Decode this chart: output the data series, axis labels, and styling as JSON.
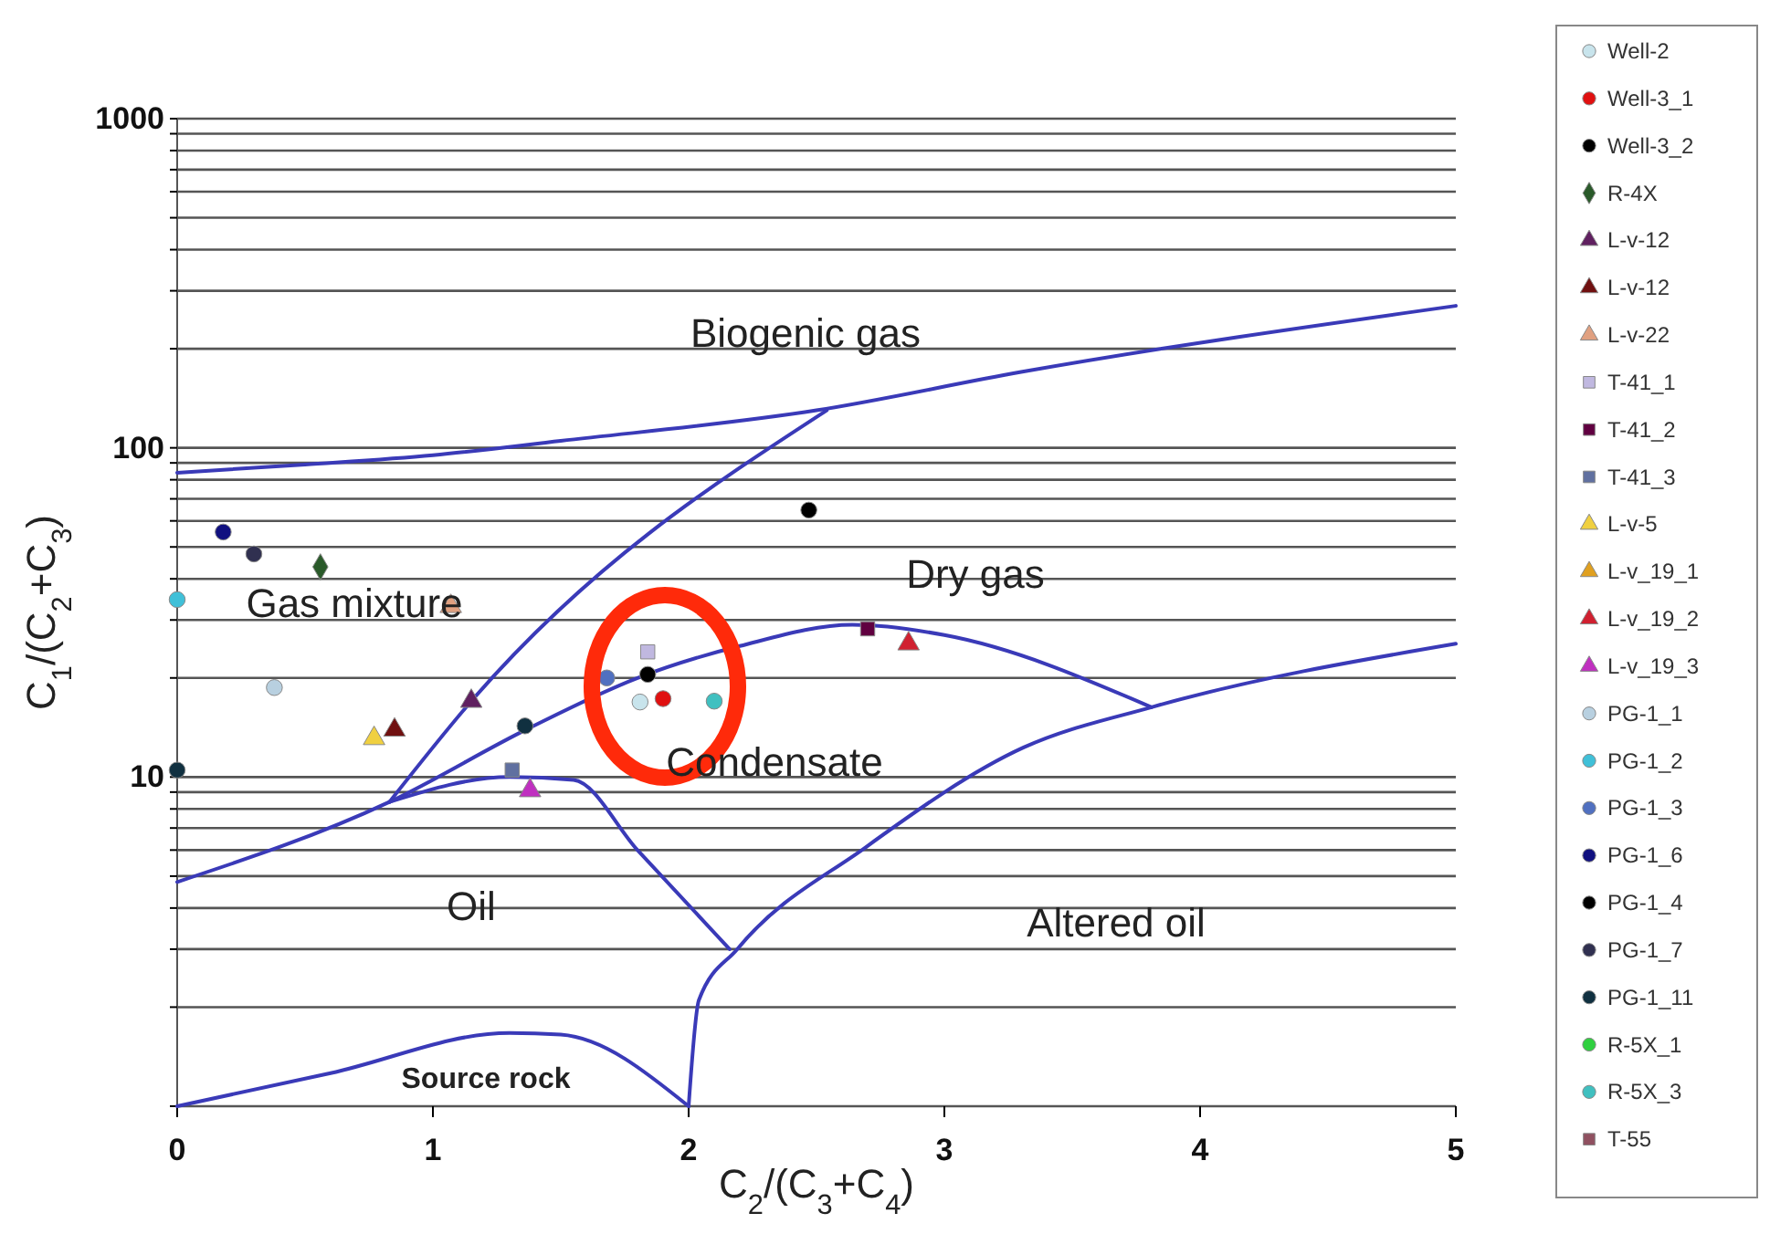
{
  "chart_data": {
    "type": "scatter",
    "xlabel": "C$_{2}$/(C$_{3}$+C$_{4}$)",
    "ylabel": "C$_{1}$/(C$_{2}$+C$_{3}$)",
    "log": "y",
    "grid": "y",
    "legend": "right",
    "xlim": [
      0,
      5
    ],
    "xticks": [
      0,
      1,
      2,
      3,
      4,
      5
    ],
    "ylim": [
      1,
      1000
    ],
    "yticks": [
      {
        "value": 1,
        "label": null
      },
      {
        "value": 2,
        "label": null
      },
      {
        "value": 3,
        "label": null
      },
      {
        "value": 4,
        "label": null
      },
      {
        "value": 5,
        "label": null
      },
      {
        "value": 6,
        "label": null
      },
      {
        "value": 7,
        "label": null
      },
      {
        "value": 8,
        "label": null
      },
      {
        "value": 9,
        "label": null
      },
      10,
      {
        "value": 20,
        "label": null
      },
      {
        "value": 30,
        "label": null
      },
      {
        "value": 40,
        "label": null
      },
      {
        "value": 50,
        "label": null
      },
      {
        "value": 60,
        "label": null
      },
      {
        "value": 70,
        "label": null
      },
      {
        "value": 80,
        "label": null
      },
      {
        "value": 90,
        "label": null
      },
      100,
      {
        "value": 200,
        "label": null
      },
      {
        "value": 300,
        "label": null
      },
      {
        "value": 400,
        "label": null
      },
      {
        "value": 500,
        "label": null
      },
      {
        "value": 600,
        "label": null
      },
      {
        "value": 700,
        "label": null
      },
      {
        "value": 800,
        "label": null
      },
      {
        "value": 900,
        "label": null
      },
      1000
    ],
    "series": [
      {
        "type": "line",
        "color": "#3a3ab8",
        "x": [
          0,
          0.5,
          1,
          1.5,
          2.5,
          3.3,
          5
        ],
        "values": [
          84,
          89,
          95,
          105,
          130,
          170,
          270
        ]
      },
      {
        "type": "line",
        "color": "#3a3ab8",
        "x": [
          0.83,
          1.15,
          2.54
        ],
        "values": [
          8.4,
          17,
          130
        ]
      },
      {
        "type": "line",
        "color": "#3a3ab8",
        "x": [
          0,
          0.83,
          1.37,
          1.8,
          2.2,
          2.64,
          3,
          3.81
        ],
        "values": [
          4.8,
          8.4,
          14,
          20,
          25,
          29,
          27,
          16.3
        ]
      },
      {
        "type": "line",
        "color": "#3a3ab8",
        "x": [
          0.83,
          1.3,
          1.55,
          1.8,
          2.16
        ],
        "values": [
          8.4,
          10,
          9.8,
          6,
          3
        ]
      },
      {
        "type": "line",
        "color": "#3a3ab8",
        "x": [
          2,
          2.04,
          2.19,
          2.69,
          3.31,
          3.81,
          5
        ],
        "values": [
          1,
          2.1,
          3,
          6.1,
          12.3,
          16.3,
          25.4
        ]
      },
      {
        "type": "line",
        "color": "#3a3ab8",
        "x": [
          0,
          0.6,
          1.3,
          1.5,
          2
        ],
        "values": [
          1,
          1.26,
          1.67,
          1.65,
          1
        ]
      },
      {
        "name": "Well-2",
        "marker": "circle",
        "color": "#c8e4ec",
        "x": [
          1.81
        ],
        "values": [
          16.9
        ]
      },
      {
        "name": "Well-3_1",
        "marker": "circle",
        "color": "#e01010",
        "x": [
          1.9
        ],
        "values": [
          17.3
        ]
      },
      {
        "name": "Well-3_2",
        "marker": "circle",
        "color": "#000000",
        "x": [
          1.84
        ],
        "values": [
          20.5
        ]
      },
      {
        "name": "R-4X",
        "marker": "diamond",
        "color": "#2a5a2a",
        "x": [
          0.56
        ],
        "values": [
          43.5
        ]
      },
      {
        "name": "L-v-12",
        "marker": "triangle",
        "color": "#602060",
        "x": [
          1.15
        ],
        "values": [
          17
        ]
      },
      {
        "name": "L-v-12",
        "marker": "triangle",
        "color": "#701010",
        "x": [
          0.85
        ],
        "values": [
          13.9
        ]
      },
      {
        "name": "L-v-22",
        "marker": "triangle",
        "color": "#e0a080",
        "x": [
          1.07
        ],
        "values": [
          33
        ]
      },
      {
        "name": "T-41_1",
        "marker": "square",
        "color": "#c0b8e0",
        "x": [
          1.84
        ],
        "values": [
          24
        ]
      },
      {
        "name": "T-41_2",
        "marker": "square",
        "color": "#600040",
        "x": [
          2.7
        ],
        "values": [
          28.2
        ]
      },
      {
        "name": "T-41_3",
        "marker": "square",
        "color": "#6070a0",
        "x": [
          1.31
        ],
        "values": [
          10.5
        ]
      },
      {
        "name": "L-v-5",
        "marker": "triangle",
        "color": "#f0d040",
        "x": [
          0.77
        ],
        "values": [
          13.1
        ]
      },
      {
        "name": "L-v_19_1",
        "marker": "triangle",
        "color": "#e0a020",
        "x": [
          null
        ],
        "values": [
          null
        ]
      },
      {
        "name": "L-v_19_2",
        "marker": "triangle",
        "color": "#d02030",
        "x": [
          2.86
        ],
        "values": [
          25.4
        ]
      },
      {
        "name": "L-v_19_3",
        "marker": "triangle",
        "color": "#c030c0",
        "x": [
          1.38
        ],
        "values": [
          9.1
        ]
      },
      {
        "name": "PG-1_1",
        "marker": "circle",
        "color": "#b8d0e0",
        "x": [
          0.38
        ],
        "values": [
          18.7
        ]
      },
      {
        "name": "PG-1_2",
        "marker": "circle",
        "color": "#40c0d8",
        "x": [
          0
        ],
        "values": [
          34.6
        ]
      },
      {
        "name": "PG-1_3",
        "marker": "circle",
        "color": "#5070c0",
        "x": [
          1.68
        ],
        "values": [
          20
        ]
      },
      {
        "name": "PG-1_6",
        "marker": "circle",
        "color": "#101080",
        "x": [
          0.18
        ],
        "values": [
          55.5
        ]
      },
      {
        "name": "PG-1_4",
        "marker": "circle",
        "color": "#000000",
        "x": [
          2.47
        ],
        "values": [
          64.7
        ]
      },
      {
        "name": "PG-1_7",
        "marker": "circle",
        "color": "#303050",
        "x": [
          0.3
        ],
        "values": [
          47.6
        ]
      },
      {
        "name": "PG-1_11",
        "marker": "circle",
        "color": "#103040",
        "x": [
          0,
          1.36
        ],
        "values": [
          10.5,
          14.3
        ]
      },
      {
        "name": "R-5X_1",
        "marker": "circle",
        "color": "#30d040",
        "x": [
          null
        ],
        "values": [
          null
        ]
      },
      {
        "name": "R-5X_3",
        "marker": "circle",
        "color": "#40c0c0",
        "x": [
          2.1
        ],
        "values": [
          17
        ]
      },
      {
        "name": "T-55",
        "marker": "square",
        "color": "#905060",
        "x": [
          null
        ],
        "values": [
          null
        ]
      }
    ],
    "annotations": [
      "Biogenic gas",
      "Gas mixture",
      "Dry gas",
      "Condensate",
      "Oil",
      "Altered oil",
      "Source rock"
    ]
  }
}
